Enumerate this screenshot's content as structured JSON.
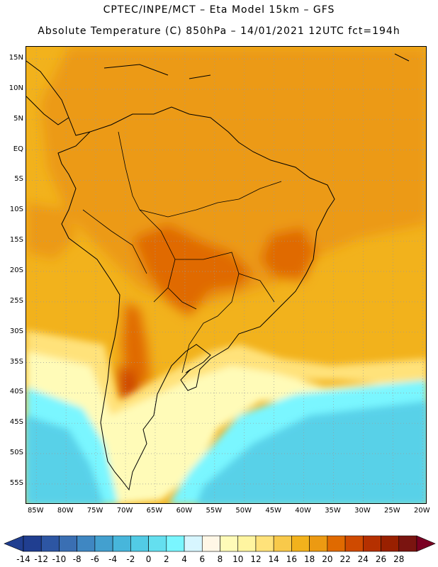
{
  "title_line1": "CPTEC/INPE/MCT –  Eta Model 15km – GFS",
  "title_line2": "Absolute Temperature (C) 850hPa – 14/01/2021 12UTC fct=194h",
  "lat_labels": [
    "15N",
    "10N",
    "5N",
    "EQ",
    "5S",
    "10S",
    "15S",
    "20S",
    "25S",
    "30S",
    "35S",
    "40S",
    "45S",
    "50S",
    "55S"
  ],
  "lon_labels": [
    "85W",
    "80W",
    "75W",
    "70W",
    "65W",
    "60W",
    "55W",
    "50W",
    "45W",
    "40W",
    "35W",
    "30W",
    "25W",
    "20W"
  ],
  "colorbar": {
    "labels": [
      "-14",
      "-12",
      "-10",
      "-8",
      "-6",
      "-4",
      "-2",
      "0",
      "2",
      "4",
      "6",
      "8",
      "10",
      "12",
      "14",
      "16",
      "18",
      "20",
      "22",
      "24",
      "26",
      "28"
    ],
    "colors": [
      "#203e90",
      "#2d56a3",
      "#3a6fb3",
      "#3f87c2",
      "#43a0cf",
      "#47b6db",
      "#52cbe5",
      "#64dfef",
      "#7af6ff",
      "#d7f6ff",
      "#fff7e6",
      "#fffbb8",
      "#fff5a0",
      "#ffe27a",
      "#f8c94a",
      "#f2b21c",
      "#ec9a12",
      "#e06a00",
      "#cf4a00",
      "#b53000",
      "#992000",
      "#7a1410"
    ],
    "low_arrow_color": "#203e90",
    "high_arrow_color": "#7a0022"
  },
  "map_colors": {
    "ocean_cold": "#52cbe5",
    "ocean_cool": "#7af6ff",
    "pale": "#fffbb8",
    "yellow": "#ffe27a",
    "warm": "#f2b21c",
    "orange": "#ec9a12",
    "hot": "#e06a00",
    "hotter": "#cf4a00"
  }
}
